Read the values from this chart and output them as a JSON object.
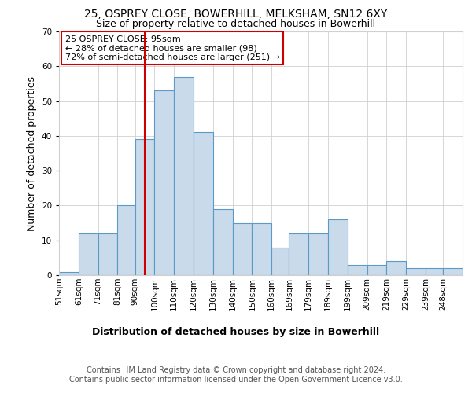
{
  "title1": "25, OSPREY CLOSE, BOWERHILL, MELKSHAM, SN12 6XY",
  "title2": "Size of property relative to detached houses in Bowerhill",
  "xlabel": "Distribution of detached houses by size in Bowerhill",
  "ylabel": "Number of detached properties",
  "bar_labels": [
    "51sqm",
    "61sqm",
    "71sqm",
    "81sqm",
    "90sqm",
    "100sqm",
    "110sqm",
    "120sqm",
    "130sqm",
    "140sqm",
    "150sqm",
    "160sqm",
    "169sqm",
    "179sqm",
    "189sqm",
    "199sqm",
    "209sqm",
    "219sqm",
    "229sqm",
    "239sqm",
    "248sqm"
  ],
  "bar_heights": [
    1,
    12,
    12,
    20,
    39,
    53,
    57,
    41,
    19,
    15,
    15,
    8,
    12,
    12,
    16,
    3,
    3,
    4,
    2,
    2,
    2
  ],
  "bar_color": "#c9daea",
  "bar_edge_color": "#5a9ac8",
  "vline_x": 95,
  "vline_color": "#cc0000",
  "annotation_text": "25 OSPREY CLOSE: 95sqm\n← 28% of detached houses are smaller (98)\n72% of semi-detached houses are larger (251) →",
  "annotation_box_color": "#ffffff",
  "annotation_box_edge": "#cc0000",
  "ylim": [
    0,
    70
  ],
  "yticks": [
    0,
    10,
    20,
    30,
    40,
    50,
    60,
    70
  ],
  "footer": "Contains HM Land Registry data © Crown copyright and database right 2024.\nContains public sector information licensed under the Open Government Licence v3.0.",
  "bg_color": "#ffffff",
  "grid_color": "#d0d0d0",
  "title1_fontsize": 10,
  "title2_fontsize": 9,
  "axis_label_fontsize": 9,
  "tick_fontsize": 7.5,
  "annotation_fontsize": 8,
  "footer_fontsize": 7
}
